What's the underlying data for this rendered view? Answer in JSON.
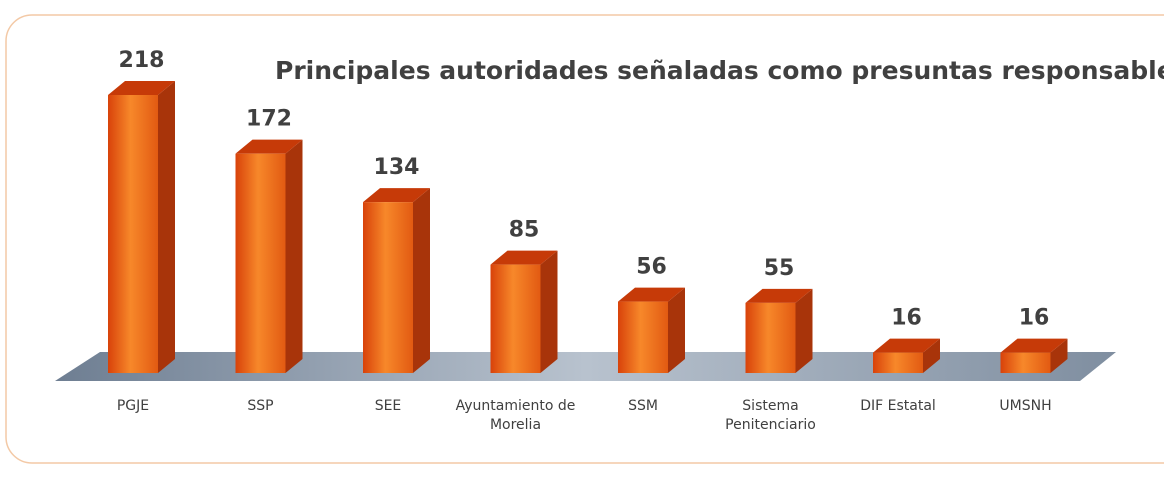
{
  "chart_data": {
    "type": "bar3d",
    "title": "Principales autoridades señaladas como presuntas responsables",
    "categories": [
      "PGJE",
      "SSP",
      "SEE",
      "Ayuntamiento de Morelia",
      "SSM",
      "Sistema Penitenciario",
      "DIF Estatal",
      "UMSNH"
    ],
    "values": [
      218,
      172,
      134,
      85,
      56,
      55,
      16,
      16
    ],
    "color": "#f07a24"
  }
}
